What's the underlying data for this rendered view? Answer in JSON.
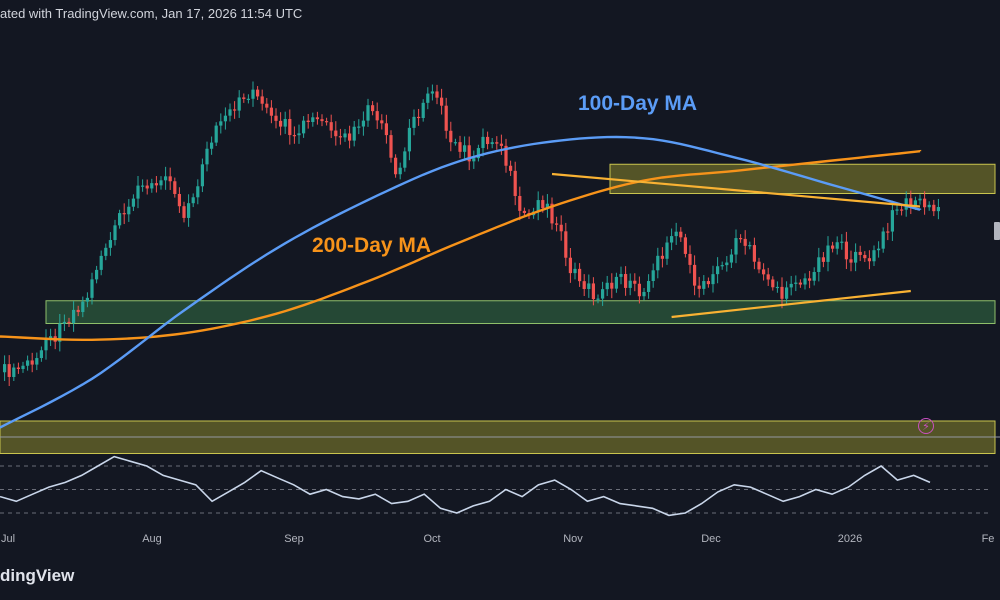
{
  "header": {
    "text": "ated with TradingView.com, Jan 17, 2026 11:54 UTC"
  },
  "brand": {
    "text": "dingView"
  },
  "labels": {
    "ma100": "100-Day MA",
    "ma200": "200-Day MA"
  },
  "colors": {
    "background": "#131722",
    "candle_up": "#26a69a",
    "candle_down": "#ef5350",
    "ma100": "#5b9cf6",
    "ma200": "#f7931a",
    "trendline": "#f9b233",
    "rsi": "#c9d6ea",
    "zone_yellow": "#6b6a2a",
    "zone_green": "#2c5a3c"
  },
  "icons": {
    "flash": "lightning-icon"
  },
  "chart_data": {
    "type": "candlestick",
    "months": [
      "Jul",
      "Aug",
      "Sep",
      "Oct",
      "Nov",
      "Dec",
      "2026",
      "Fe"
    ],
    "price_scale": "unlabeled",
    "zones": [
      {
        "name": "resistance",
        "color": "yellow",
        "y_range": [
          0.62,
          0.71
        ]
      },
      {
        "name": "support",
        "color": "green",
        "y_range": [
          0.22,
          0.29
        ]
      },
      {
        "name": "lower-support",
        "color": "yellow",
        "y_range": [
          -0.18,
          -0.08
        ]
      }
    ],
    "candles_close_path": [
      [
        0,
        0.07
      ],
      [
        6,
        0.1
      ],
      [
        12,
        0.18
      ],
      [
        18,
        0.28
      ],
      [
        22,
        0.42
      ],
      [
        26,
        0.56
      ],
      [
        30,
        0.62
      ],
      [
        34,
        0.66
      ],
      [
        38,
        0.62
      ],
      [
        40,
        0.54
      ],
      [
        44,
        0.7
      ],
      [
        48,
        0.86
      ],
      [
        52,
        0.9
      ],
      [
        56,
        0.92
      ],
      [
        60,
        0.86
      ],
      [
        64,
        0.82
      ],
      [
        68,
        0.86
      ],
      [
        72,
        0.83
      ],
      [
        76,
        0.8
      ],
      [
        80,
        0.88
      ],
      [
        84,
        0.82
      ],
      [
        86,
        0.68
      ],
      [
        90,
        0.84
      ],
      [
        94,
        0.92
      ],
      [
        98,
        0.8
      ],
      [
        102,
        0.74
      ],
      [
        106,
        0.78
      ],
      [
        110,
        0.72
      ],
      [
        114,
        0.56
      ],
      [
        118,
        0.58
      ],
      [
        122,
        0.48
      ],
      [
        124,
        0.4
      ],
      [
        126,
        0.36
      ],
      [
        130,
        0.3
      ],
      [
        134,
        0.36
      ],
      [
        140,
        0.32
      ],
      [
        144,
        0.44
      ],
      [
        148,
        0.48
      ],
      [
        150,
        0.38
      ],
      [
        154,
        0.34
      ],
      [
        158,
        0.42
      ],
      [
        162,
        0.48
      ],
      [
        166,
        0.36
      ],
      [
        170,
        0.32
      ],
      [
        174,
        0.34
      ],
      [
        178,
        0.4
      ],
      [
        182,
        0.46
      ],
      [
        186,
        0.42
      ],
      [
        190,
        0.44
      ],
      [
        192,
        0.5
      ],
      [
        196,
        0.58
      ],
      [
        200,
        0.6
      ],
      [
        204,
        0.56
      ]
    ],
    "ma100_path": [
      [
        0,
        -0.1
      ],
      [
        20,
        0.05
      ],
      [
        40,
        0.26
      ],
      [
        60,
        0.45
      ],
      [
        80,
        0.6
      ],
      [
        100,
        0.72
      ],
      [
        120,
        0.78
      ],
      [
        140,
        0.79
      ],
      [
        160,
        0.73
      ],
      [
        180,
        0.65
      ],
      [
        200,
        0.57
      ]
    ],
    "ma200_path": [
      [
        0,
        0.18
      ],
      [
        20,
        0.17
      ],
      [
        40,
        0.19
      ],
      [
        60,
        0.25
      ],
      [
        80,
        0.35
      ],
      [
        100,
        0.47
      ],
      [
        120,
        0.58
      ],
      [
        140,
        0.66
      ],
      [
        160,
        0.69
      ],
      [
        180,
        0.72
      ],
      [
        200,
        0.75
      ]
    ],
    "trendlines": [
      {
        "name": "descending",
        "from": [
          120,
          0.68
        ],
        "to": [
          200,
          0.58
        ]
      },
      {
        "name": "ascending",
        "from": [
          146,
          0.24
        ],
        "to": [
          198,
          0.32
        ]
      }
    ],
    "rsi": {
      "levels": [
        70,
        50,
        30
      ],
      "values": [
        44,
        40,
        46,
        52,
        56,
        62,
        70,
        78,
        74,
        70,
        62,
        58,
        54,
        40,
        48,
        56,
        66,
        60,
        54,
        46,
        50,
        44,
        42,
        46,
        38,
        40,
        46,
        34,
        30,
        36,
        40,
        50,
        44,
        54,
        58,
        50,
        40,
        44,
        38,
        36,
        34,
        28,
        30,
        38,
        48,
        54,
        52,
        46,
        40,
        44,
        50,
        46,
        52,
        62,
        70,
        58,
        62,
        56
      ]
    }
  }
}
